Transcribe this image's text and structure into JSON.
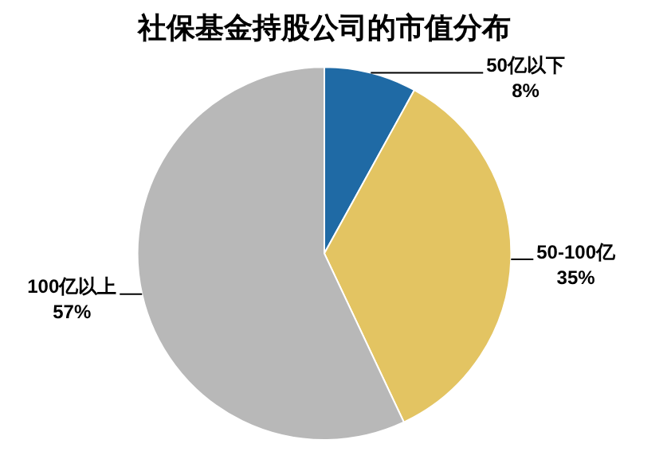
{
  "chart_data": {
    "type": "pie",
    "title": "社保基金持股公司的市值分布",
    "categories": [
      "50亿以下",
      "50-100亿",
      "100亿以上"
    ],
    "values": [
      8,
      35,
      57
    ],
    "value_labels": [
      "8%",
      "35%",
      "57%"
    ],
    "colors": [
      "#1f6aa5",
      "#e3c462",
      "#b8b8b8"
    ],
    "legend": false
  }
}
